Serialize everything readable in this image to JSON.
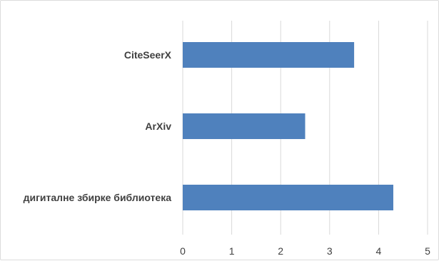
{
  "chart_data": {
    "type": "bar",
    "orientation": "horizontal",
    "categories": [
      "CiteSeerX",
      "ArXiv",
      "дигиталне збирке библиотека"
    ],
    "values": [
      3.5,
      2.5,
      4.3
    ],
    "x_ticks": [
      "0",
      "1",
      "2",
      "3",
      "4",
      "5"
    ],
    "xlim": [
      0,
      5
    ],
    "grid": "vertical",
    "bar_color": "#4f81bd",
    "title": "",
    "xlabel": "",
    "ylabel": ""
  }
}
